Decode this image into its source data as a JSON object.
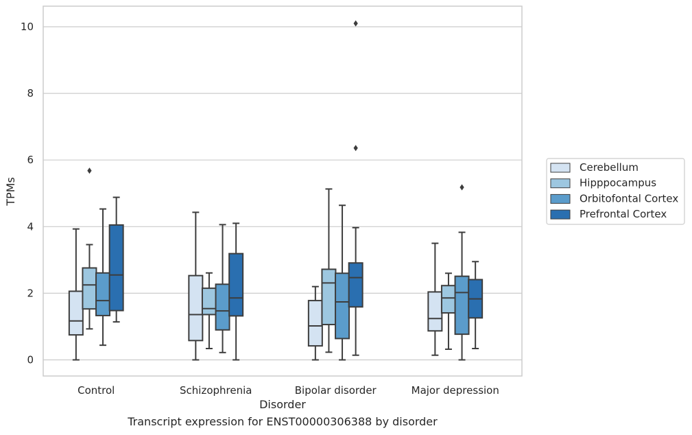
{
  "caption": "Transcript expression for ENST00000306388 by disorder",
  "chart_data": {
    "type": "box",
    "xlabel": "Disorder",
    "ylabel": "TPMs",
    "ylim": [
      -0.5,
      10.6
    ],
    "yticks": [
      0,
      2,
      4,
      6,
      8,
      10
    ],
    "grid": "horizontal",
    "legend_position": "right",
    "categories": [
      "Control",
      "Schizophrenia",
      "Bipolar disorder",
      "Major depression"
    ],
    "series": [
      {
        "name": "Cerebellum",
        "color": "#d4e3f2",
        "boxes": [
          {
            "whislo": 0.0,
            "q1": 0.75,
            "med": 1.17,
            "q3": 2.06,
            "whishi": 3.93,
            "fliers": []
          },
          {
            "whislo": 0.0,
            "q1": 0.58,
            "med": 1.36,
            "q3": 2.53,
            "whishi": 4.43,
            "fliers": []
          },
          {
            "whislo": 0.0,
            "q1": 0.42,
            "med": 1.02,
            "q3": 1.78,
            "whishi": 2.2,
            "fliers": []
          },
          {
            "whislo": 0.14,
            "q1": 0.87,
            "med": 1.24,
            "q3": 2.04,
            "whishi": 3.5,
            "fliers": []
          }
        ]
      },
      {
        "name": "Hipppocampus",
        "color": "#9dc7e0",
        "boxes": [
          {
            "whislo": 0.93,
            "q1": 1.53,
            "med": 2.25,
            "q3": 2.76,
            "whishi": 3.46,
            "fliers": [
              5.68
            ]
          },
          {
            "whislo": 0.34,
            "q1": 1.36,
            "med": 1.54,
            "q3": 2.15,
            "whishi": 2.61,
            "fliers": []
          },
          {
            "whislo": 0.23,
            "q1": 1.06,
            "med": 2.31,
            "q3": 2.72,
            "whishi": 5.13,
            "fliers": []
          },
          {
            "whislo": 0.32,
            "q1": 1.41,
            "med": 1.86,
            "q3": 2.23,
            "whishi": 2.6,
            "fliers": []
          }
        ]
      },
      {
        "name": "Orbitofontal Cortex",
        "color": "#5b9ccb",
        "boxes": [
          {
            "whislo": 0.44,
            "q1": 1.33,
            "med": 1.78,
            "q3": 2.61,
            "whishi": 4.53,
            "fliers": []
          },
          {
            "whislo": 0.22,
            "q1": 0.9,
            "med": 1.47,
            "q3": 2.27,
            "whishi": 4.06,
            "fliers": []
          },
          {
            "whislo": 0.0,
            "q1": 0.64,
            "med": 1.74,
            "q3": 2.6,
            "whishi": 4.64,
            "fliers": []
          },
          {
            "whislo": 0.0,
            "q1": 0.77,
            "med": 2.02,
            "q3": 2.51,
            "whishi": 3.83,
            "fliers": [
              5.18
            ]
          }
        ]
      },
      {
        "name": "Prefrontal Cortex",
        "color": "#2a6fb0",
        "boxes": [
          {
            "whislo": 1.14,
            "q1": 1.48,
            "med": 2.55,
            "q3": 4.05,
            "whishi": 4.88,
            "fliers": []
          },
          {
            "whislo": 0.0,
            "q1": 1.32,
            "med": 1.86,
            "q3": 3.19,
            "whishi": 4.1,
            "fliers": []
          },
          {
            "whislo": 0.14,
            "q1": 1.59,
            "med": 2.47,
            "q3": 2.91,
            "whishi": 3.97,
            "fliers": [
              6.36,
              10.1
            ]
          },
          {
            "whislo": 0.34,
            "q1": 1.26,
            "med": 1.83,
            "q3": 2.41,
            "whishi": 2.95,
            "fliers": []
          }
        ]
      }
    ]
  }
}
